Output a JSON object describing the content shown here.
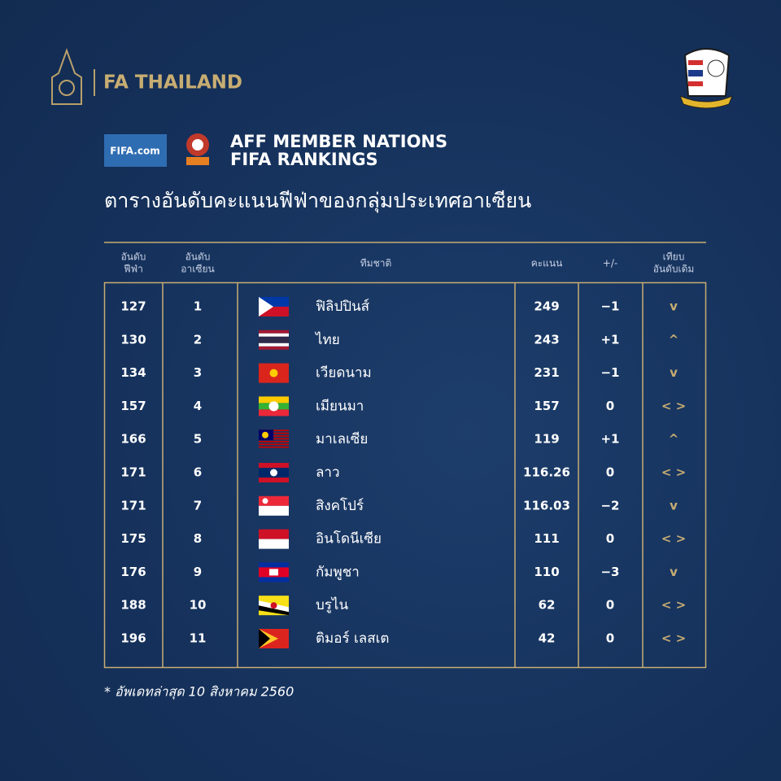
{
  "header": {
    "brand": "FA THAILAND",
    "fifa_badge": "FIFA.com",
    "title_lines": [
      "AFF MEMBER NATIONS",
      "FIFA RANKINGS"
    ],
    "subtitle": "ตารางอันดับคะแนนฟีฟ่าของกลุ่มประเทศอาเซียน"
  },
  "table": {
    "columns": [
      [
        "อันดับ",
        "ฟีฟ่า"
      ],
      [
        "อันดับ",
        "อาเซียน"
      ],
      [
        "ทีมชาติ"
      ],
      [
        "คะแนน"
      ],
      [
        "+/-"
      ],
      [
        "เทียบ",
        "อันดับเดิม"
      ]
    ],
    "rows": [
      [
        "127",
        "1",
        "ฟิลิปปินส์",
        "249",
        "−1",
        "v"
      ],
      [
        "130",
        "2",
        "ไทย",
        "243",
        "+1",
        "^"
      ],
      [
        "134",
        "3",
        "เวียดนาม",
        "231",
        "−1",
        "v"
      ],
      [
        "157",
        "4",
        "เมียนมา",
        "157",
        "0",
        "< >"
      ],
      [
        "166",
        "5",
        "มาเลเซีย",
        "119",
        "+1",
        "^"
      ],
      [
        "171",
        "6",
        "ลาว",
        "116.26",
        "0",
        "< >"
      ],
      [
        "171",
        "7",
        "สิงคโปร์",
        "116.03",
        "−2",
        "v"
      ],
      [
        "175",
        "8",
        "อินโดนีเซีย",
        "111",
        "0",
        "< >"
      ],
      [
        "176",
        "9",
        "กัมพูชา",
        "110",
        "−3",
        "v"
      ],
      [
        "188",
        "10",
        "บรูไน",
        "62",
        "0",
        "< >"
      ],
      [
        "196",
        "11",
        "ติมอร์ เลสเต",
        "42",
        "0",
        "< >"
      ]
    ]
  },
  "footnote": "* อัพเดทล่าสุด 10 สิงหาคม 2560"
}
